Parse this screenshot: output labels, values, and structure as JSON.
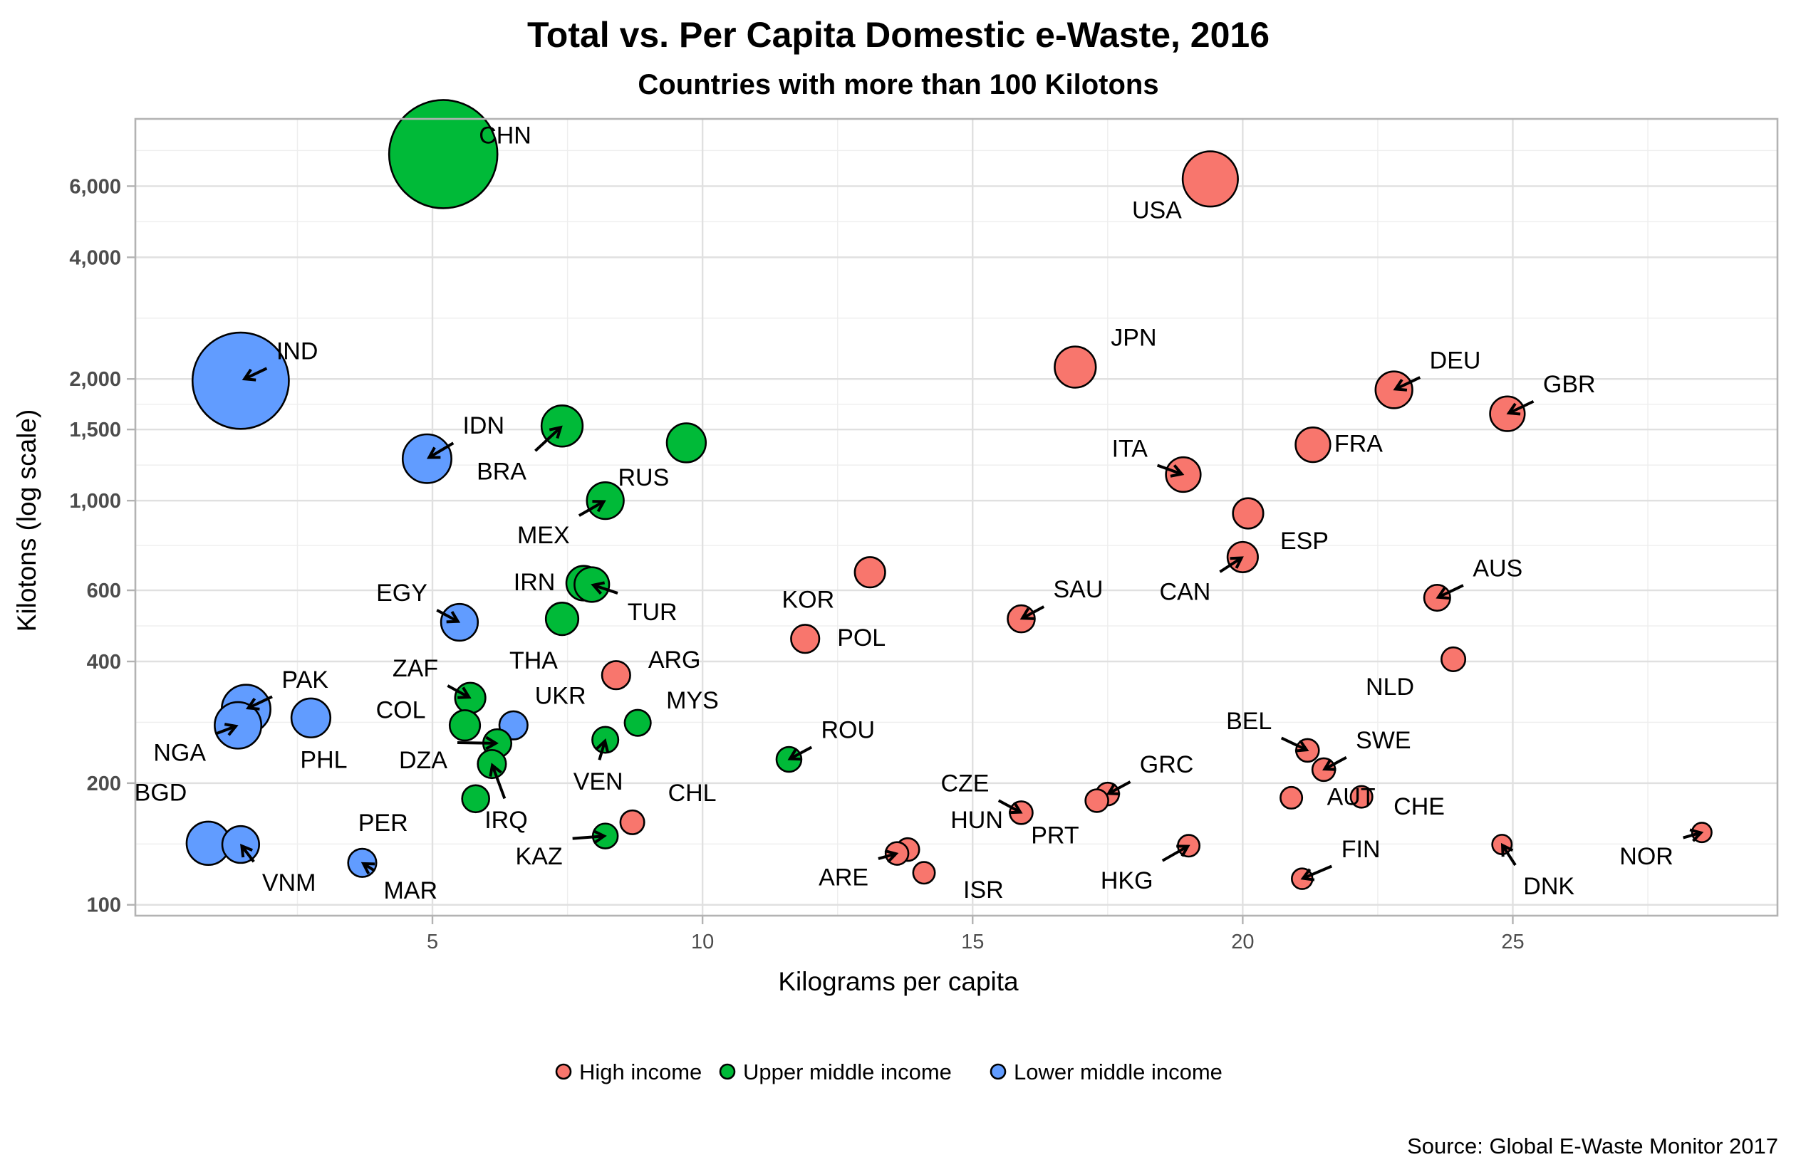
{
  "chart_data": {
    "type": "scatter",
    "title": "Total vs. Per Capita Domestic e-Waste, 2016",
    "subtitle": "Countries with more than 100 Kilotons",
    "xlabel": "Kilograms per capita",
    "ylabel": "Kilotons (log scale)",
    "caption": "Source: Global E-Waste Monitor 2017",
    "x_scale": "linear",
    "y_scale": "log10",
    "xlim": [
      -0.5,
      29.9
    ],
    "ylim": [
      94,
      8800
    ],
    "x_ticks": [
      5,
      10,
      15,
      20,
      25
    ],
    "x_tick_labels": [
      "5",
      "10",
      "15",
      "20",
      "25"
    ],
    "y_ticks": [
      100,
      200,
      400,
      600,
      1000,
      1500,
      2000,
      4000,
      6000
    ],
    "y_tick_labels": [
      "100",
      "200",
      "400",
      "600",
      "1,000",
      "1,500",
      "2,000",
      "4,000",
      "6,000"
    ],
    "grid": true,
    "legend": {
      "placement": "bottom",
      "entries": [
        {
          "name": "High income",
          "color": "#F8766D"
        },
        {
          "name": "Upper middle income",
          "color": "#00BA38"
        },
        {
          "name": "Lower middle income",
          "color": "#619CFF"
        }
      ]
    },
    "size_encoding_note": "bubble area encodes an unlabeled variable; size_rel is relative bubble radius (largest = 1)",
    "points": [
      {
        "label": "CHN",
        "x": 5.2,
        "y": 7200,
        "group": "Upper middle income",
        "size_rel": 1.0
      },
      {
        "label": "USA",
        "x": 19.4,
        "y": 6250,
        "group": "High income",
        "size_rel": 0.51
      },
      {
        "label": "IND",
        "x": 1.45,
        "y": 1980,
        "group": "Lower middle income",
        "size_rel": 0.89
      },
      {
        "label": "JPN",
        "x": 16.9,
        "y": 2140,
        "group": "High income",
        "size_rel": 0.38
      },
      {
        "label": "DEU",
        "x": 22.8,
        "y": 1880,
        "group": "High income",
        "size_rel": 0.34
      },
      {
        "label": "GBR",
        "x": 24.9,
        "y": 1640,
        "group": "High income",
        "size_rel": 0.32
      },
      {
        "label": "BRA",
        "x": 7.4,
        "y": 1530,
        "group": "Upper middle income",
        "size_rel": 0.38
      },
      {
        "label": "RUS",
        "x": 9.7,
        "y": 1390,
        "group": "Upper middle income",
        "size_rel": 0.36
      },
      {
        "label": "FRA",
        "x": 21.3,
        "y": 1375,
        "group": "High income",
        "size_rel": 0.32
      },
      {
        "label": "IDN",
        "x": 4.9,
        "y": 1270,
        "group": "Lower middle income",
        "size_rel": 0.45
      },
      {
        "label": "ITA",
        "x": 18.9,
        "y": 1160,
        "group": "High income",
        "size_rel": 0.32
      },
      {
        "label": "MEX",
        "x": 8.2,
        "y": 1000,
        "group": "Upper middle income",
        "size_rel": 0.34
      },
      {
        "label": "ESP",
        "x": 20.1,
        "y": 930,
        "group": "High income",
        "size_rel": 0.28
      },
      {
        "label": "CAN",
        "x": 20.0,
        "y": 725,
        "group": "High income",
        "size_rel": 0.28
      },
      {
        "label": "KOR",
        "x": 13.1,
        "y": 665,
        "group": "High income",
        "size_rel": 0.28
      },
      {
        "label": "IRN",
        "x": 7.8,
        "y": 625,
        "group": "Upper middle income",
        "size_rel": 0.32
      },
      {
        "label": "TUR",
        "x": 7.95,
        "y": 620,
        "group": "Upper middle income",
        "size_rel": 0.32
      },
      {
        "label": "AUS",
        "x": 23.6,
        "y": 575,
        "group": "High income",
        "size_rel": 0.24
      },
      {
        "label": "THA",
        "x": 7.4,
        "y": 510,
        "group": "Upper middle income",
        "size_rel": 0.3
      },
      {
        "label": "SAU",
        "x": 15.9,
        "y": 510,
        "group": "High income",
        "size_rel": 0.25
      },
      {
        "label": "EGY",
        "x": 5.5,
        "y": 500,
        "group": "Lower middle income",
        "size_rel": 0.34
      },
      {
        "label": "POL",
        "x": 11.9,
        "y": 455,
        "group": "High income",
        "size_rel": 0.26
      },
      {
        "label": "NLD",
        "x": 23.9,
        "y": 405,
        "group": "High income",
        "size_rel": 0.22
      },
      {
        "label": "ARG",
        "x": 8.4,
        "y": 370,
        "group": "High income",
        "size_rel": 0.26
      },
      {
        "label": "ZAF",
        "x": 5.7,
        "y": 325,
        "group": "Upper middle income",
        "size_rel": 0.28
      },
      {
        "label": "PAK",
        "x": 1.55,
        "y": 305,
        "group": "Lower middle income",
        "size_rel": 0.45
      },
      {
        "label": "PHL",
        "x": 2.75,
        "y": 290,
        "group": "Lower middle income",
        "size_rel": 0.36
      },
      {
        "label": "MYS",
        "x": 8.8,
        "y": 282,
        "group": "Upper middle income",
        "size_rel": 0.24
      },
      {
        "label": "NGA",
        "x": 1.4,
        "y": 278,
        "group": "Lower middle income",
        "size_rel": 0.43
      },
      {
        "label": "COL",
        "x": 5.6,
        "y": 278,
        "group": "Upper middle income",
        "size_rel": 0.28
      },
      {
        "label": "UKR",
        "x": 6.5,
        "y": 278,
        "group": "Lower middle income",
        "size_rel": 0.26
      },
      {
        "label": "VEN",
        "x": 8.2,
        "y": 256,
        "group": "Upper middle income",
        "size_rel": 0.24
      },
      {
        "label": "DZA",
        "x": 6.2,
        "y": 251,
        "group": "Upper middle income",
        "size_rel": 0.26
      },
      {
        "label": "BEL",
        "x": 21.2,
        "y": 241,
        "group": "High income",
        "size_rel": 0.21
      },
      {
        "label": "ROU",
        "x": 11.6,
        "y": 229,
        "group": "Upper middle income",
        "size_rel": 0.23
      },
      {
        "label": "IRQ",
        "x": 6.1,
        "y": 223,
        "group": "Upper middle income",
        "size_rel": 0.26
      },
      {
        "label": "SWE",
        "x": 21.5,
        "y": 216,
        "group": "High income",
        "size_rel": 0.21
      },
      {
        "label": "GRC",
        "x": 17.5,
        "y": 188,
        "group": "High income",
        "size_rel": 0.21
      },
      {
        "label": "CHE",
        "x": 22.2,
        "y": 185,
        "group": "High income",
        "size_rel": 0.2
      },
      {
        "label": "AUT",
        "x": 20.9,
        "y": 184,
        "group": "High income",
        "size_rel": 0.2
      },
      {
        "label": "PER",
        "x": 5.8,
        "y": 183,
        "group": "Upper middle income",
        "size_rel": 0.25
      },
      {
        "label": "PRT",
        "x": 17.3,
        "y": 181,
        "group": "High income",
        "size_rel": 0.21
      },
      {
        "label": "CZE",
        "x": 15.9,
        "y": 169,
        "group": "High income",
        "size_rel": 0.21
      },
      {
        "label": "CHL",
        "x": 8.7,
        "y": 160,
        "group": "High income",
        "size_rel": 0.22
      },
      {
        "label": "NOR",
        "x": 28.5,
        "y": 151,
        "group": "High income",
        "size_rel": 0.18
      },
      {
        "label": "KAZ",
        "x": 8.2,
        "y": 148,
        "group": "Upper middle income",
        "size_rel": 0.23
      },
      {
        "label": "BGD",
        "x": 0.85,
        "y": 142,
        "group": "Lower middle income",
        "size_rel": 0.4
      },
      {
        "label": "VNM",
        "x": 1.45,
        "y": 141,
        "group": "Lower middle income",
        "size_rel": 0.34
      },
      {
        "label": "DNK",
        "x": 24.8,
        "y": 141,
        "group": "High income",
        "size_rel": 0.18
      },
      {
        "label": "HKG",
        "x": 19.0,
        "y": 140,
        "group": "High income",
        "size_rel": 0.2
      },
      {
        "label": "HUN",
        "x": 13.8,
        "y": 137,
        "group": "High income",
        "size_rel": 0.21
      },
      {
        "label": "ARE",
        "x": 13.6,
        "y": 134,
        "group": "High income",
        "size_rel": 0.21
      },
      {
        "label": "MAR",
        "x": 3.7,
        "y": 127,
        "group": "Lower middle income",
        "size_rel": 0.26
      },
      {
        "label": "ISR",
        "x": 14.1,
        "y": 120,
        "group": "High income",
        "size_rel": 0.2
      },
      {
        "label": "FIN",
        "x": 21.1,
        "y": 116,
        "group": "High income",
        "size_rel": 0.19
      }
    ]
  }
}
